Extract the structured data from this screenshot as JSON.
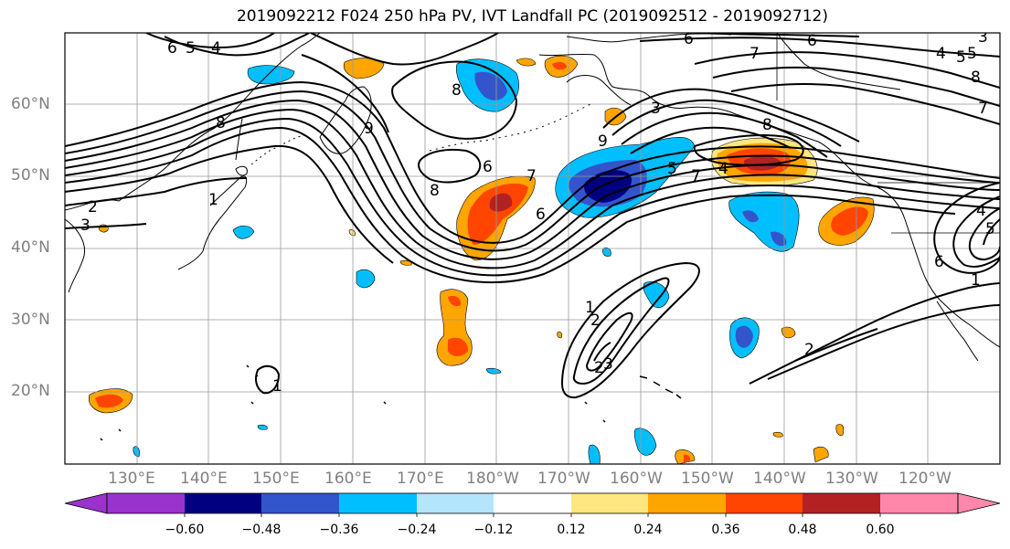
{
  "title": "2019092212 F024 250 hPa PV, IVT Landfall PC (2019092512 - 2019092712)",
  "lat_labels": [
    "60°N",
    "50°N",
    "40°N",
    "30°N",
    "20°N"
  ],
  "lon_labels": [
    "130°E",
    "140°E",
    "150°E",
    "160°E",
    "170°E",
    "180°W",
    "170°W",
    "160°W",
    "150°W",
    "140°W",
    "130°W",
    "120°W"
  ],
  "colorbar": {
    "colors": [
      "#9933cc",
      "#000080",
      "#3355cc",
      "#00bfff",
      "#b3e5fc",
      "#ffffff",
      "#ffe680",
      "#ffa500",
      "#ff4500",
      "#b22222",
      "#ff88aa"
    ],
    "tick_labels": [
      "−0.60",
      "−0.48",
      "−0.36",
      "−0.24",
      "−0.12",
      "0.12",
      "0.24",
      "0.36",
      "0.48",
      "0.60"
    ]
  },
  "contour_labels": [
    "6",
    "5",
    "4",
    "8",
    "6",
    "7",
    "6",
    "5",
    "4",
    "3",
    "8",
    "2",
    "3",
    "1",
    "9",
    "8",
    "6",
    "7",
    "6",
    "5",
    "4",
    "3",
    "8",
    "9",
    "7",
    "8",
    "4",
    "5",
    "6",
    "2",
    "1",
    "2",
    "3",
    "1",
    "2",
    "1",
    "5",
    "7"
  ]
}
